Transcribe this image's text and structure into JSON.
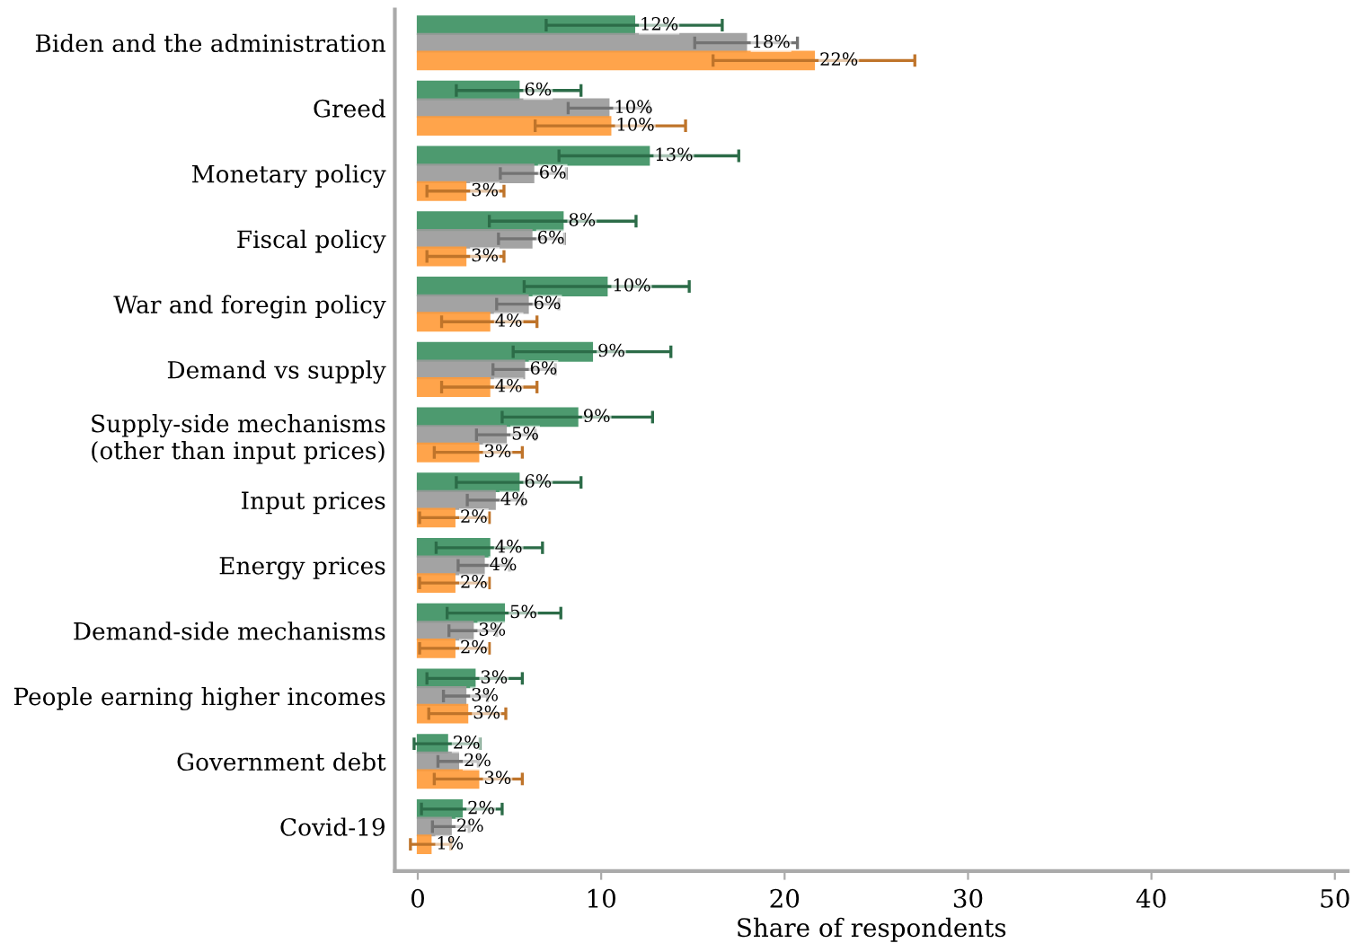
{
  "chart_data": {
    "type": "bar",
    "orientation": "horizontal",
    "xlabel": "Share of respondents",
    "categories": [
      "Biden and the administration",
      "Greed",
      "Monetary policy",
      "Fiscal policy",
      "War and foregin policy",
      "Demand vs supply",
      "Supply-side mechanisms\n(other than input prices)",
      "Input prices",
      "Energy prices",
      "Demand-side mechanisms",
      "People earning higher incomes",
      "Government debt",
      "Covid-19"
    ],
    "series": [
      {
        "color": "#3a9060",
        "values": [
          11.8,
          5.5,
          12.6,
          7.9,
          10.3,
          9.5,
          8.7,
          5.5,
          3.9,
          4.7,
          3.1,
          1.6,
          2.4
        ],
        "errors": [
          4.8,
          3.4,
          4.9,
          4.0,
          4.5,
          4.3,
          4.1,
          3.4,
          2.9,
          3.1,
          2.6,
          1.8,
          2.2
        ],
        "value_labels": [
          "12%",
          "6%",
          "13%",
          "8%",
          "10%",
          "9%",
          "9%",
          "6%",
          "4%",
          "5%",
          "3%",
          "2%",
          "2%"
        ]
      },
      {
        "color": "#9a9a9a",
        "values": [
          17.9,
          10.4,
          6.3,
          6.2,
          6.0,
          5.8,
          4.8,
          4.2,
          3.6,
          3.0,
          2.6,
          2.2,
          1.8
        ],
        "errors": [
          2.8,
          2.2,
          1.8,
          1.8,
          1.7,
          1.7,
          1.6,
          1.5,
          1.4,
          1.3,
          1.2,
          1.1,
          1.0
        ],
        "value_labels": [
          "18%",
          "10%",
          "6%",
          "6%",
          "6%",
          "6%",
          "5%",
          "4%",
          "4%",
          "3%",
          "3%",
          "2%",
          "2%"
        ]
      },
      {
        "color": "#ff9b38",
        "values": [
          21.6,
          10.5,
          2.6,
          2.6,
          3.9,
          3.9,
          3.3,
          2.0,
          2.0,
          2.0,
          2.7,
          3.3,
          0.7
        ],
        "errors": [
          5.5,
          4.1,
          2.1,
          2.1,
          2.6,
          2.6,
          2.4,
          1.9,
          1.9,
          1.9,
          2.1,
          2.4,
          1.1
        ],
        "value_labels": [
          "22%",
          "10%",
          "3%",
          "3%",
          "4%",
          "4%",
          "3%",
          "2%",
          "2%",
          "2%",
          "3%",
          "3%",
          "1%"
        ]
      }
    ],
    "xlim": [
      -1.25,
      50.7
    ],
    "xticks": [
      0,
      10,
      20,
      30,
      40,
      50
    ],
    "grid": false,
    "legend": false
  }
}
